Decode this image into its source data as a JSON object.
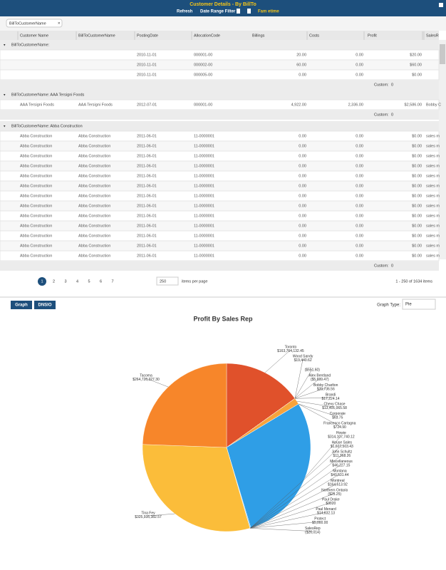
{
  "header": {
    "title": "Customer Details - By BillTo",
    "toolbar": [
      "Refresh",
      "Date Range Filter",
      "Fam etime"
    ]
  },
  "group_panel": {
    "chip": "BillToCustomerName"
  },
  "grid": {
    "columns": [
      "Customer Name",
      "BillToCustomerName",
      "PostingDate",
      "AllocationCode",
      "Billings",
      "Costs",
      "Profit",
      "SalesR"
    ],
    "groups": [
      {
        "label": "BillToCustomerName:",
        "footer_label": "Custom:",
        "footer_value": 0,
        "rows": [
          [
            null,
            null,
            "2010-11-01",
            "000001-00",
            "20.00",
            "0.00",
            "$20.00",
            null
          ],
          [
            null,
            null,
            "2010-11-01",
            "000002-00",
            "60.00",
            "0.00",
            "$60.00",
            null
          ],
          [
            null,
            null,
            "2010-11-01",
            "000005-00",
            "0.00",
            "0.00",
            "$0.00",
            null
          ]
        ]
      },
      {
        "label": "BillToCustomerName: AAA Tersigni Foods",
        "footer_label": "Custom:",
        "footer_value": 0,
        "rows": [
          [
            "AAA Tersigni Foods",
            "AAA Tersigni Foods",
            "2012-07-01",
            "000001-00",
            "4,922.00",
            "2,336.00",
            "$2,586.00",
            "Bobby C"
          ]
        ]
      },
      {
        "label": "BillToCustomerName: Abba Construction",
        "footer_label": "Custom:",
        "footer_value": 0,
        "rows": [
          [
            "Abba Construction",
            "Abba Construction",
            "2011-06-01",
            "11-0000001",
            "0.00",
            "0.00",
            "$0.00",
            "sales m"
          ],
          [
            "Abba Construction",
            "Abba Construction",
            "2011-06-01",
            "11-0000001",
            "0.00",
            "0.00",
            "$0.00",
            "sales m"
          ],
          [
            "Abba Construction",
            "Abba Construction",
            "2011-06-01",
            "11-0000001",
            "0.00",
            "0.00",
            "$0.00",
            "sales m"
          ],
          [
            "Abba Construction",
            "Abba Construction",
            "2011-06-01",
            "11-0000001",
            "0.00",
            "0.00",
            "$0.00",
            "sales m"
          ],
          [
            "Abba Construction",
            "Abba Construction",
            "2011-06-01",
            "11-0000001",
            "0.00",
            "0.00",
            "$0.00",
            "sales m"
          ],
          [
            "Abba Construction",
            "Abba Construction",
            "2011-06-01",
            "11-0000001",
            "0.00",
            "0.00",
            "$0.00",
            "sales m"
          ],
          [
            "Abba Construction",
            "Abba Construction",
            "2011-06-01",
            "11-0000001",
            "0.00",
            "0.00",
            "$0.00",
            "sales m"
          ],
          [
            "Abba Construction",
            "Abba Construction",
            "2011-06-01",
            "11-0000001",
            "0.00",
            "0.00",
            "$0.00",
            "sales m"
          ],
          [
            "Abba Construction",
            "Abba Construction",
            "2011-06-01",
            "11-0000001",
            "0.00",
            "0.00",
            "$0.00",
            "sales m"
          ],
          [
            "Abba Construction",
            "Abba Construction",
            "2011-06-01",
            "11-0000001",
            "0.00",
            "0.00",
            "$0.00",
            "sales m"
          ],
          [
            "Abba Construction",
            "Abba Construction",
            "2011-06-01",
            "11-0000001",
            "0.00",
            "0.00",
            "$0.00",
            "sales m"
          ],
          [
            "Abba Construction",
            "Abba Construction",
            "2011-06-01",
            "11-0000001",
            "0.00",
            "0.00",
            "$0.00",
            "sales m"
          ],
          [
            "Abba Construction",
            "Abba Construction",
            "2011-06-01",
            "11-0000001",
            "0.00",
            "0.00",
            "$0.00",
            "sales m"
          ]
        ]
      }
    ]
  },
  "pager": {
    "pages": [
      1,
      2,
      3,
      4,
      5,
      6,
      7
    ],
    "page_size": 250,
    "page_size_label": "items per page",
    "summary": "1 - 250 of 1634 items"
  },
  "chart_panel": {
    "buttons": [
      "Graph",
      "DNSIO"
    ],
    "graph_type_label": "Graph Type:",
    "graph_type": "Pie"
  },
  "chart_data": {
    "type": "pie",
    "title": "Profit By Sales Rep",
    "categories": [
      "Toronto",
      "Wood Sandy",
      null,
      "Alex Bentland",
      "Bobby Charlton",
      "Brandi",
      "Chevy Chase",
      "Corporate",
      "Francesco Cartagna",
      "Howie",
      "House Sales",
      "John Schultz",
      "Miscellaneous",
      "Montana",
      "Montreal",
      "Northern Ontario",
      "Paul Drake",
      "Paul Menard",
      "Protect",
      "SalesRep",
      "Tina Fey",
      "Tacoma"
    ],
    "values": [
      163764132.45,
      19440.62,
      -551.6,
      -5699.47,
      39736.56,
      17224.14,
      13401065.58,
      63.75,
      724.9,
      314107740.12,
      1607503.43,
      11368.26,
      46227.15,
      40531.44,
      164513.92,
      -25.25,
      3020,
      14632.13,
      5000.0,
      -26014,
      325935382.57,
      264726327.3
    ],
    "value_labels": [
      "$163,764,132.45",
      "$19,440.62",
      "($551.60)",
      "($5,699.47)",
      "$39,736.56",
      "$17,224.14",
      "$13,401,065.58",
      "$63.75",
      "$724.90",
      "$314,107,740.12",
      "$1,607,503.43",
      "$11,368.26",
      "$46,227.15",
      "$40,531.44",
      "$164,513.92",
      "($25.25)",
      "$3020",
      "$14,632.13",
      "$5,000.00",
      "($26,014)",
      "$325,935,382.57",
      "$264,726,327.30"
    ],
    "colors": [
      "#e0512b",
      "#f29a38",
      "#d9534f",
      "#8e6cc0",
      "#5cb85c",
      "#9b59b6",
      "#f7a33c",
      "#e67e22",
      "#c0392b",
      "#2f9ee6",
      "#3fa9f5",
      "#1abc9c",
      "#16a085",
      "#27ae60",
      "#2980b9",
      "#7f8c8d",
      "#95a5a6",
      "#34495e",
      "#8e44ad",
      "#bdc3c7",
      "#fbbd3a",
      "#f7862a"
    ]
  }
}
